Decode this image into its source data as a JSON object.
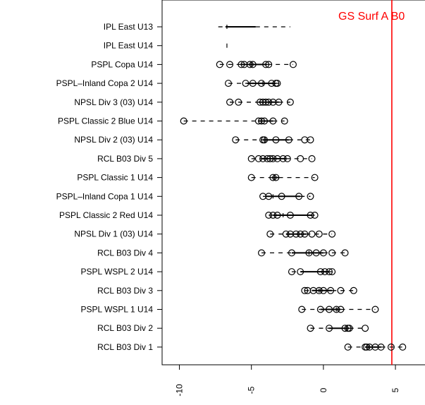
{
  "chart_data": {
    "type": "boxplot",
    "orientation": "horizontal",
    "xlim": [
      -11.2,
      7.2
    ],
    "x_ticks": [
      -10,
      -5,
      0,
      5
    ],
    "x_tick_labels": [
      "-10",
      "-5",
      "0",
      "5"
    ],
    "reference_line": {
      "x": 4.75,
      "label": "GS Surf A B0",
      "color": "#ff0000"
    },
    "categories": [
      "IPL East U13",
      "IPL East U14",
      "PSPL Copa U14",
      "PSPL–Inland Copa 2 U14",
      "NPSL Div 3 (03) U14",
      "PSPL Classic 2 Blue U14",
      "NPSL Div 2 (03) U14",
      "RCL B03 Div 5",
      "PSPL Classic 1 U14",
      "PSPL–Inland Copa 1 U14",
      "PSPL Classic 2 Red U14",
      "NPSL Div 1 (03) U14",
      "RCL B03 Div 4",
      "PSPL WSPL 2 U14",
      "RCL B03 Div 3",
      "PSPL WSPL 1 U14",
      "RCL B03 Div 2",
      "RCL B03 Div 1"
    ],
    "boxes": [
      {
        "whislo": -7.3,
        "q1": -6.8,
        "med": -6.7,
        "q3": -4.7,
        "whishi": -2.3,
        "outliers": []
      },
      {
        "whislo": -6.7,
        "q1": -6.7,
        "med": -6.7,
        "q3": -6.7,
        "whishi": -6.7,
        "outliers": []
      },
      {
        "whislo": -7.2,
        "q1": -5.7,
        "med": -5.0,
        "q3": -3.9,
        "whishi": -2.1,
        "outliers": [
          -7.2,
          -6.5,
          -5.7,
          -5.5,
          -5.1,
          -4.9,
          -4.0,
          -3.8,
          -2.1
        ]
      },
      {
        "whislo": -6.6,
        "q1": -5.3,
        "med": -4.2,
        "q3": -3.3,
        "whishi": -3.1,
        "outliers": [
          -6.6,
          -5.4,
          -4.9,
          -4.3,
          -3.6,
          -3.3,
          -3.2
        ]
      },
      {
        "whislo": -6.5,
        "q1": -4.5,
        "med": -4.0,
        "q3": -3.1,
        "whishi": -2.3,
        "outliers": [
          -6.5,
          -5.9,
          -4.4,
          -4.2,
          -4.0,
          -3.8,
          -3.5,
          -3.1,
          -2.3
        ]
      },
      {
        "whislo": -9.7,
        "q1": -4.5,
        "med": -4.3,
        "q3": -3.5,
        "whishi": -2.7,
        "outliers": [
          -9.7,
          -4.5,
          -4.3,
          -4.1,
          -3.5,
          -2.7
        ]
      },
      {
        "whislo": -6.1,
        "q1": -4.2,
        "med": -4.1,
        "q3": -2.4,
        "whishi": -0.9,
        "outliers": [
          -6.1,
          -4.2,
          -4.1,
          -3.3,
          -2.4,
          -1.3,
          -0.9
        ]
      },
      {
        "whislo": -5.0,
        "q1": -4.3,
        "med": -3.5,
        "q3": -2.6,
        "whishi": -0.8,
        "outliers": [
          -5.0,
          -4.5,
          -4.2,
          -3.9,
          -3.7,
          -3.5,
          -3.2,
          -2.8,
          -2.5,
          -1.6,
          -0.8
        ]
      },
      {
        "whislo": -5.0,
        "q1": -3.6,
        "med": -3.4,
        "q3": -3.1,
        "whishi": -0.6,
        "outliers": [
          -5.0,
          -3.5,
          -3.3,
          -0.6
        ]
      },
      {
        "whislo": -4.2,
        "q1": -4.0,
        "med": -3.5,
        "q3": -1.6,
        "whishi": -0.9,
        "outliers": [
          -4.2,
          -3.8,
          -2.9,
          -1.7,
          -0.9
        ]
      },
      {
        "whislo": -3.8,
        "q1": -3.5,
        "med": -2.8,
        "q3": -0.8,
        "whishi": -0.6,
        "outliers": [
          -3.8,
          -3.5,
          -3.2,
          -2.3,
          -0.9,
          -0.6
        ]
      },
      {
        "whislo": -3.7,
        "q1": -2.6,
        "med": -1.7,
        "q3": -1.2,
        "whishi": 0.6,
        "outliers": [
          -3.7,
          -2.6,
          -2.3,
          -1.9,
          -1.6,
          -1.3,
          -0.8,
          -0.3,
          0.6
        ]
      },
      {
        "whislo": -4.3,
        "q1": -2.2,
        "med": -1.0,
        "q3": 0.0,
        "whishi": 1.5,
        "outliers": [
          -4.3,
          -2.2,
          -1.0,
          -0.5,
          0.0,
          0.6,
          1.5
        ]
      },
      {
        "whislo": -2.2,
        "q1": -1.6,
        "med": 0.0,
        "q3": 0.4,
        "whishi": 0.6,
        "outliers": [
          -2.2,
          -1.6,
          -0.2,
          0.1,
          0.4,
          0.6
        ]
      },
      {
        "whislo": -1.3,
        "q1": -0.8,
        "med": -0.3,
        "q3": 0.6,
        "whishi": 2.1,
        "outliers": [
          -1.3,
          -1.1,
          -0.7,
          -0.3,
          0.0,
          0.5,
          1.2,
          2.1
        ]
      },
      {
        "whislo": -1.5,
        "q1": -0.2,
        "med": 0.9,
        "q3": 1.2,
        "whishi": 3.6,
        "outliers": [
          -1.5,
          -0.2,
          0.4,
          0.9,
          1.2,
          3.6
        ]
      },
      {
        "whislo": -0.9,
        "q1": 0.4,
        "med": 1.6,
        "q3": 1.8,
        "whishi": 2.9,
        "outliers": [
          -0.9,
          0.4,
          1.5,
          1.7,
          1.8,
          2.9
        ]
      },
      {
        "whislo": 1.7,
        "q1": 2.9,
        "med": 3.2,
        "q3": 4.0,
        "whishi": 5.5,
        "outliers": [
          1.7,
          2.9,
          3.0,
          3.2,
          3.6,
          4.0,
          4.7,
          5.5
        ]
      }
    ]
  }
}
